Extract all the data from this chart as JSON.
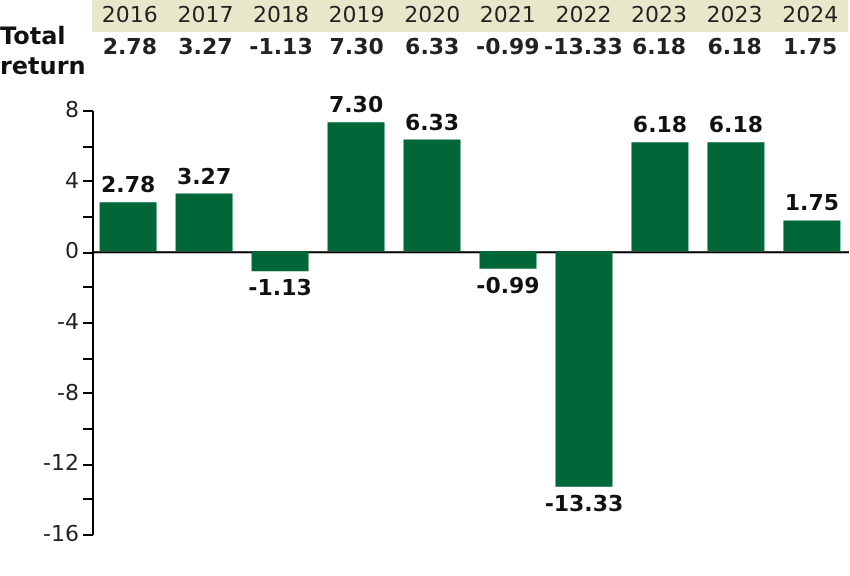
{
  "chart_data": {
    "type": "bar",
    "categories": [
      "2016",
      "2017",
      "2018",
      "2019",
      "2020",
      "2021",
      "2022",
      "2023",
      "2023",
      "2024"
    ],
    "values": [
      2.78,
      3.27,
      -1.13,
      7.3,
      6.33,
      -0.99,
      -13.33,
      6.18,
      6.18,
      1.75
    ],
    "value_labels": [
      "2.78",
      "3.27",
      "-1.13",
      "7.30",
      "6.33",
      "-0.99",
      "-13.33",
      "6.18",
      "6.18",
      "1.75"
    ],
    "color": "#006838",
    "ylim": [
      -16,
      8
    ],
    "yticks": [
      8,
      {
        "value": 6,
        "label": null
      },
      4,
      {
        "value": 2,
        "label": null
      },
      0,
      {
        "value": -2,
        "label": null
      },
      -4,
      {
        "value": -6,
        "label": null
      },
      -8,
      {
        "value": -10,
        "label": null
      },
      -12,
      {
        "value": -14,
        "label": null
      },
      -16
    ],
    "tick_labels": "y",
    "annotations": [
      "Total return"
    ]
  }
}
